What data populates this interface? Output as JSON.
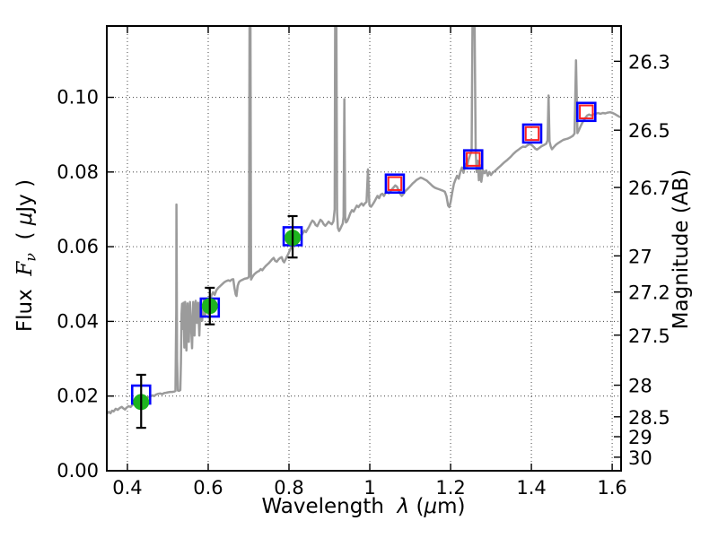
{
  "chart_data": {
    "type": "line",
    "title": "",
    "xlabel_parts": [
      {
        "t": "Wavelength  ",
        "s": "n"
      },
      {
        "t": "λ",
        "s": "i"
      },
      {
        "t": " (",
        "s": "n"
      },
      {
        "t": "μ",
        "s": "i"
      },
      {
        "t": "m)",
        "s": "n"
      }
    ],
    "ylabel_left_parts": [
      {
        "t": "Flux  ",
        "s": "n"
      },
      {
        "t": "F",
        "s": "si"
      },
      {
        "t": "ν",
        "s": "sisub"
      },
      {
        "t": "  ( ",
        "s": "n"
      },
      {
        "t": "μ",
        "s": "i"
      },
      {
        "t": "Jy )",
        "s": "n"
      }
    ],
    "ylabel_right": "Magnitude (AB)",
    "xlim": [
      0.349,
      1.622
    ],
    "ylim": [
      0,
      0.1191
    ],
    "grid": true,
    "xticks": {
      "values": [
        0.4,
        0.6,
        0.8,
        1.0,
        1.2,
        1.4,
        1.6
      ],
      "labels": [
        "0.4",
        "0.6",
        "0.8",
        "1",
        "1.2",
        "1.4",
        "1.6"
      ]
    },
    "yticks_left": {
      "values": [
        0.0,
        0.02,
        0.04,
        0.06,
        0.08,
        0.1
      ],
      "labels": [
        "0.00",
        "0.02",
        "0.04",
        "0.06",
        "0.08",
        "0.10"
      ]
    },
    "yticks_right": {
      "labels": [
        "26.3",
        "26.5",
        "26.7",
        "27",
        "27.2",
        "27.5",
        "28",
        "28.5",
        "29",
        "30"
      ],
      "flux_values": [
        0.10965,
        0.0912,
        0.07586,
        0.05754,
        0.04786,
        0.03631,
        0.02291,
        0.01445,
        0.00912,
        0.00363
      ]
    },
    "colors": {
      "spectrum": "#9b9b9b",
      "observed": "#1eb41e",
      "model_box": "#0000ff",
      "model_point": "#ff2020",
      "error_bar": "#000000",
      "grid": "#555555",
      "axis": "#000000"
    },
    "observed_photometry": [
      {
        "wavelength": 0.434,
        "flux": 0.0184,
        "err_plus": 0.0073,
        "err_minus": 0.0069
      },
      {
        "wavelength": 0.604,
        "flux": 0.0441,
        "err_plus": 0.0049,
        "err_minus": 0.0049
      },
      {
        "wavelength": 0.809,
        "flux": 0.0624,
        "err_plus": 0.0058,
        "err_minus": 0.0053
      }
    ],
    "model_photometry_blue_squares": [
      {
        "wavelength": 0.434,
        "flux": 0.0204
      },
      {
        "wavelength": 0.604,
        "flux": 0.0437
      },
      {
        "wavelength": 0.809,
        "flux": 0.0628
      },
      {
        "wavelength": 1.062,
        "flux": 0.0769
      },
      {
        "wavelength": 1.256,
        "flux": 0.0834
      },
      {
        "wavelength": 1.402,
        "flux": 0.0903
      },
      {
        "wavelength": 1.536,
        "flux": 0.0961
      }
    ],
    "model_photometry_red_squares": [
      {
        "wavelength": 1.062,
        "flux": 0.0769
      },
      {
        "wavelength": 1.256,
        "flux": 0.0834
      },
      {
        "wavelength": 1.402,
        "flux": 0.0903
      },
      {
        "wavelength": 1.536,
        "flux": 0.0961
      }
    ],
    "spectrum_points": [
      [
        0.349,
        0.0152
      ],
      [
        0.354,
        0.0158
      ],
      [
        0.358,
        0.0154
      ],
      [
        0.362,
        0.0161
      ],
      [
        0.366,
        0.0159
      ],
      [
        0.371,
        0.0166
      ],
      [
        0.376,
        0.0163
      ],
      [
        0.381,
        0.0168
      ],
      [
        0.386,
        0.0171
      ],
      [
        0.39,
        0.0167
      ],
      [
        0.394,
        0.0164
      ],
      [
        0.398,
        0.0169
      ],
      [
        0.403,
        0.0173
      ],
      [
        0.408,
        0.0171
      ],
      [
        0.412,
        0.0176
      ],
      [
        0.417,
        0.0179
      ],
      [
        0.422,
        0.0177
      ],
      [
        0.427,
        0.0182
      ],
      [
        0.432,
        0.0185
      ],
      [
        0.437,
        0.0188
      ],
      [
        0.442,
        0.0191
      ],
      [
        0.447,
        0.0194
      ],
      [
        0.452,
        0.0197
      ],
      [
        0.457,
        0.0199
      ],
      [
        0.462,
        0.0202
      ],
      [
        0.466,
        0.02
      ],
      [
        0.471,
        0.0204
      ],
      [
        0.476,
        0.0206
      ],
      [
        0.481,
        0.0207
      ],
      [
        0.486,
        0.0205
      ],
      [
        0.491,
        0.0208
      ],
      [
        0.496,
        0.0209
      ],
      [
        0.501,
        0.021
      ],
      [
        0.506,
        0.0211
      ],
      [
        0.511,
        0.0211
      ],
      [
        0.516,
        0.0212
      ],
      [
        0.519,
        0.0214
      ],
      [
        0.521,
        0.043
      ],
      [
        0.5215,
        0.0713
      ],
      [
        0.523,
        0.03
      ],
      [
        0.525,
        0.0215
      ],
      [
        0.528,
        0.0214
      ],
      [
        0.531,
        0.0216
      ],
      [
        0.5325,
        0.029
      ],
      [
        0.534,
        0.042
      ],
      [
        0.5355,
        0.0447
      ],
      [
        0.537,
        0.038
      ],
      [
        0.539,
        0.045
      ],
      [
        0.541,
        0.033
      ],
      [
        0.543,
        0.0452
      ],
      [
        0.546,
        0.0322
      ],
      [
        0.549,
        0.0448
      ],
      [
        0.552,
        0.0345
      ],
      [
        0.555,
        0.0452
      ],
      [
        0.558,
        0.0378
      ],
      [
        0.56,
        0.0328
      ],
      [
        0.563,
        0.0452
      ],
      [
        0.566,
        0.0362
      ],
      [
        0.569,
        0.0455
      ],
      [
        0.572,
        0.0396
      ],
      [
        0.575,
        0.045
      ],
      [
        0.578,
        0.0362
      ],
      [
        0.581,
        0.0452
      ],
      [
        0.585,
        0.0402
      ],
      [
        0.589,
        0.0456
      ],
      [
        0.592,
        0.0412
      ],
      [
        0.596,
        0.046
      ],
      [
        0.6,
        0.0445
      ],
      [
        0.604,
        0.0455
      ],
      [
        0.608,
        0.047
      ],
      [
        0.612,
        0.0478
      ],
      [
        0.616,
        0.0471
      ],
      [
        0.62,
        0.0483
      ],
      [
        0.625,
        0.049
      ],
      [
        0.63,
        0.0495
      ],
      [
        0.635,
        0.05
      ],
      [
        0.64,
        0.0505
      ],
      [
        0.645,
        0.0508
      ],
      [
        0.65,
        0.051
      ],
      [
        0.654,
        0.0508
      ],
      [
        0.658,
        0.0512
      ],
      [
        0.662,
        0.0513
      ],
      [
        0.665,
        0.049
      ],
      [
        0.668,
        0.0472
      ],
      [
        0.67,
        0.0468
      ],
      [
        0.673,
        0.0495
      ],
      [
        0.676,
        0.0505
      ],
      [
        0.679,
        0.0508
      ],
      [
        0.682,
        0.051
      ],
      [
        0.686,
        0.0512
      ],
      [
        0.69,
        0.0514
      ],
      [
        0.694,
        0.0515
      ],
      [
        0.698,
        0.0516
      ],
      [
        0.701,
        0.052
      ],
      [
        0.7025,
        0.125
      ],
      [
        0.7045,
        0.125
      ],
      [
        0.706,
        0.0512
      ],
      [
        0.71,
        0.052
      ],
      [
        0.714,
        0.0526
      ],
      [
        0.718,
        0.053
      ],
      [
        0.722,
        0.0533
      ],
      [
        0.726,
        0.0535
      ],
      [
        0.73,
        0.054
      ],
      [
        0.734,
        0.0537
      ],
      [
        0.738,
        0.0543
      ],
      [
        0.742,
        0.0548
      ],
      [
        0.746,
        0.0552
      ],
      [
        0.75,
        0.0556
      ],
      [
        0.754,
        0.0561
      ],
      [
        0.758,
        0.0566
      ],
      [
        0.762,
        0.057
      ],
      [
        0.766,
        0.0562
      ],
      [
        0.77,
        0.056
      ],
      [
        0.774,
        0.0566
      ],
      [
        0.778,
        0.057
      ],
      [
        0.782,
        0.0572
      ],
      [
        0.785,
        0.0562
      ],
      [
        0.788,
        0.0558
      ],
      [
        0.791,
        0.0565
      ],
      [
        0.794,
        0.0572
      ],
      [
        0.798,
        0.058
      ],
      [
        0.802,
        0.059
      ],
      [
        0.806,
        0.06
      ],
      [
        0.81,
        0.061
      ],
      [
        0.814,
        0.0617
      ],
      [
        0.818,
        0.0622
      ],
      [
        0.822,
        0.0627
      ],
      [
        0.826,
        0.0631
      ],
      [
        0.83,
        0.0628
      ],
      [
        0.834,
        0.0636
      ],
      [
        0.838,
        0.0643
      ],
      [
        0.842,
        0.0639
      ],
      [
        0.846,
        0.0647
      ],
      [
        0.85,
        0.0654
      ],
      [
        0.854,
        0.0663
      ],
      [
        0.858,
        0.067
      ],
      [
        0.862,
        0.0666
      ],
      [
        0.866,
        0.0658
      ],
      [
        0.87,
        0.0655
      ],
      [
        0.874,
        0.0664
      ],
      [
        0.878,
        0.0672
      ],
      [
        0.882,
        0.0668
      ],
      [
        0.886,
        0.066
      ],
      [
        0.89,
        0.0656
      ],
      [
        0.894,
        0.0661
      ],
      [
        0.898,
        0.0667
      ],
      [
        0.902,
        0.0663
      ],
      [
        0.906,
        0.066
      ],
      [
        0.91,
        0.0668
      ],
      [
        0.913,
        0.07
      ],
      [
        0.9145,
        0.125
      ],
      [
        0.917,
        0.125
      ],
      [
        0.919,
        0.069
      ],
      [
        0.921,
        0.065
      ],
      [
        0.924,
        0.0642
      ],
      [
        0.927,
        0.0648
      ],
      [
        0.93,
        0.0655
      ],
      [
        0.933,
        0.0662
      ],
      [
        0.935,
        0.068
      ],
      [
        0.937,
        0.0995
      ],
      [
        0.939,
        0.068
      ],
      [
        0.941,
        0.0665
      ],
      [
        0.944,
        0.0668
      ],
      [
        0.948,
        0.0678
      ],
      [
        0.952,
        0.069
      ],
      [
        0.956,
        0.0698
      ],
      [
        0.96,
        0.0694
      ],
      [
        0.964,
        0.0702
      ],
      [
        0.968,
        0.071
      ],
      [
        0.972,
        0.0706
      ],
      [
        0.976,
        0.0712
      ],
      [
        0.98,
        0.0716
      ],
      [
        0.984,
        0.071
      ],
      [
        0.988,
        0.0716
      ],
      [
        0.992,
        0.072
      ],
      [
        0.9955,
        0.0807
      ],
      [
        0.999,
        0.0712
      ],
      [
        1.003,
        0.0707
      ],
      [
        1.007,
        0.0713
      ],
      [
        1.011,
        0.072
      ],
      [
        1.015,
        0.0728
      ],
      [
        1.019,
        0.0736
      ],
      [
        1.023,
        0.073
      ],
      [
        1.027,
        0.0739
      ],
      [
        1.031,
        0.0742
      ],
      [
        1.035,
        0.0736
      ],
      [
        1.039,
        0.0744
      ],
      [
        1.043,
        0.0747
      ],
      [
        1.047,
        0.0743
      ],
      [
        1.051,
        0.0749
      ],
      [
        1.055,
        0.0754
      ],
      [
        1.059,
        0.0759
      ],
      [
        1.063,
        0.0764
      ],
      [
        1.067,
        0.0761
      ],
      [
        1.071,
        0.0752
      ],
      [
        1.075,
        0.0742
      ],
      [
        1.079,
        0.0736
      ],
      [
        1.083,
        0.0741
      ],
      [
        1.087,
        0.0748
      ],
      [
        1.091,
        0.0752
      ],
      [
        1.096,
        0.0757
      ],
      [
        1.101,
        0.0763
      ],
      [
        1.106,
        0.0769
      ],
      [
        1.111,
        0.0774
      ],
      [
        1.116,
        0.0779
      ],
      [
        1.121,
        0.0782
      ],
      [
        1.126,
        0.0785
      ],
      [
        1.131,
        0.0783
      ],
      [
        1.136,
        0.078
      ],
      [
        1.141,
        0.0777
      ],
      [
        1.146,
        0.0772
      ],
      [
        1.151,
        0.0767
      ],
      [
        1.156,
        0.0762
      ],
      [
        1.161,
        0.0758
      ],
      [
        1.166,
        0.0756
      ],
      [
        1.171,
        0.0754
      ],
      [
        1.176,
        0.0752
      ],
      [
        1.181,
        0.075
      ],
      [
        1.186,
        0.0747
      ],
      [
        1.19,
        0.0735
      ],
      [
        1.194,
        0.071
      ],
      [
        1.197,
        0.0706
      ],
      [
        1.2,
        0.072
      ],
      [
        1.204,
        0.0745
      ],
      [
        1.208,
        0.0768
      ],
      [
        1.212,
        0.078
      ],
      [
        1.216,
        0.079
      ],
      [
        1.22,
        0.0782
      ],
      [
        1.224,
        0.08
      ],
      [
        1.228,
        0.0812
      ],
      [
        1.232,
        0.0798
      ],
      [
        1.236,
        0.0822
      ],
      [
        1.24,
        0.081
      ],
      [
        1.244,
        0.0832
      ],
      [
        1.248,
        0.0845
      ],
      [
        1.252,
        0.0858
      ],
      [
        1.2545,
        0.125
      ],
      [
        1.259,
        0.125
      ],
      [
        1.262,
        0.086
      ],
      [
        1.2645,
        0.08
      ],
      [
        1.267,
        0.083
      ],
      [
        1.27,
        0.0778
      ],
      [
        1.273,
        0.0818
      ],
      [
        1.276,
        0.0774
      ],
      [
        1.28,
        0.0805
      ],
      [
        1.284,
        0.0797
      ],
      [
        1.288,
        0.0804
      ],
      [
        1.292,
        0.079
      ],
      [
        1.296,
        0.08
      ],
      [
        1.3,
        0.0792
      ],
      [
        1.304,
        0.0798
      ],
      [
        1.309,
        0.0802
      ],
      [
        1.314,
        0.0807
      ],
      [
        1.319,
        0.0812
      ],
      [
        1.324,
        0.0817
      ],
      [
        1.329,
        0.0822
      ],
      [
        1.334,
        0.0827
      ],
      [
        1.339,
        0.0831
      ],
      [
        1.344,
        0.0836
      ],
      [
        1.349,
        0.0841
      ],
      [
        1.355,
        0.0848
      ],
      [
        1.361,
        0.0854
      ],
      [
        1.367,
        0.0859
      ],
      [
        1.373,
        0.0864
      ],
      [
        1.379,
        0.0868
      ],
      [
        1.385,
        0.0867
      ],
      [
        1.391,
        0.0872
      ],
      [
        1.397,
        0.0875
      ],
      [
        1.402,
        0.0871
      ],
      [
        1.406,
        0.0867
      ],
      [
        1.41,
        0.0862
      ],
      [
        1.414,
        0.086
      ],
      [
        1.419,
        0.0864
      ],
      [
        1.425,
        0.0869
      ],
      [
        1.431,
        0.0872
      ],
      [
        1.437,
        0.0876
      ],
      [
        1.44,
        0.0885
      ],
      [
        1.4425,
        0.1005
      ],
      [
        1.445,
        0.0882
      ],
      [
        1.448,
        0.0868
      ],
      [
        1.451,
        0.0861
      ],
      [
        1.455,
        0.0866
      ],
      [
        1.461,
        0.0873
      ],
      [
        1.467,
        0.0878
      ],
      [
        1.473,
        0.0882
      ],
      [
        1.479,
        0.0886
      ],
      [
        1.485,
        0.0888
      ],
      [
        1.491,
        0.089
      ],
      [
        1.497,
        0.0893
      ],
      [
        1.503,
        0.0897
      ],
      [
        1.507,
        0.0903
      ],
      [
        1.5105,
        0.1099
      ],
      [
        1.514,
        0.0904
      ],
      [
        1.518,
        0.0913
      ],
      [
        1.523,
        0.0925
      ],
      [
        1.528,
        0.0936
      ],
      [
        1.533,
        0.0944
      ],
      [
        1.538,
        0.0951
      ],
      [
        1.543,
        0.0954
      ],
      [
        1.548,
        0.0951
      ],
      [
        1.553,
        0.0954
      ],
      [
        1.559,
        0.0956
      ],
      [
        1.565,
        0.0958
      ],
      [
        1.571,
        0.0956
      ],
      [
        1.577,
        0.0958
      ],
      [
        1.583,
        0.0957
      ],
      [
        1.589,
        0.0959
      ],
      [
        1.595,
        0.096
      ],
      [
        1.601,
        0.0958
      ],
      [
        1.607,
        0.0955
      ],
      [
        1.613,
        0.0951
      ],
      [
        1.618,
        0.0948
      ],
      [
        1.622,
        0.0946
      ]
    ]
  }
}
